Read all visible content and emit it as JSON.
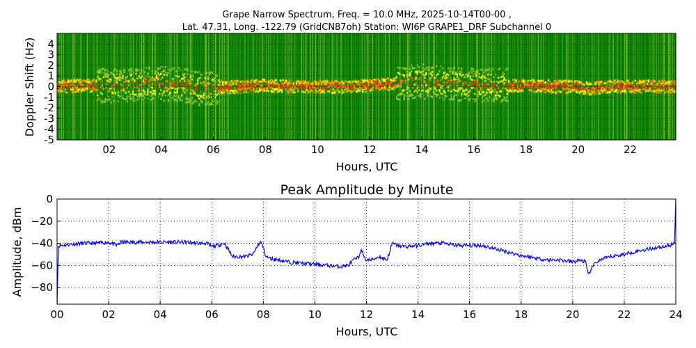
{
  "figure": {
    "title_line1": "Grape Narrow Spectrum, Freq. = 10.0 MHz, 2025-10-14T00-00 ,",
    "title_line2": "Lat.  47.31, Long. -122.79 (GridCN87oh) Station: WI6P GRAPE1_DRF Subchannel 0"
  },
  "chart_data": [
    {
      "type": "heatmap",
      "title": "",
      "xlabel": "Hours, UTC",
      "ylabel": "Doppler Shift (Hz)",
      "xlim": [
        0,
        23.75
      ],
      "ylim": [
        -5,
        5
      ],
      "x_ticks": [
        2,
        4,
        6,
        8,
        10,
        12,
        14,
        16,
        18,
        20,
        22
      ],
      "x_tick_labels": [
        "02",
        "04",
        "06",
        "08",
        "10",
        "12",
        "14",
        "16",
        "18",
        "20",
        "22"
      ],
      "y_ticks": [
        -5,
        -4,
        -3,
        -2,
        -1,
        0,
        1,
        2,
        3,
        4
      ],
      "y_tick_labels": [
        "-5",
        "-4",
        "-3",
        "-2",
        "-1",
        "0",
        "1",
        "2",
        "3",
        "4"
      ],
      "grid": true,
      "colormap": [
        "#007a00",
        "#3a9a00",
        "#9acd32",
        "#ffff00",
        "#ff8c00",
        "#ff2a00"
      ],
      "carrier_offset_hz": [
        [
          0,
          0
        ],
        [
          1,
          0.1
        ],
        [
          2,
          0.1
        ],
        [
          3,
          0.2
        ],
        [
          4,
          0.3
        ],
        [
          5,
          0.1
        ],
        [
          5.5,
          -0.2
        ],
        [
          6,
          -0.1
        ],
        [
          7,
          0
        ],
        [
          8,
          0.1
        ],
        [
          9,
          0
        ],
        [
          10,
          0
        ],
        [
          11,
          0
        ],
        [
          12,
          0.1
        ],
        [
          13,
          0.3
        ],
        [
          14,
          0.5
        ],
        [
          15,
          0.3
        ],
        [
          16,
          0.2
        ],
        [
          17,
          0.1
        ],
        [
          18,
          0.1
        ],
        [
          19,
          0
        ],
        [
          20,
          0
        ],
        [
          20.4,
          -0.2
        ],
        [
          21,
          0
        ],
        [
          22,
          0
        ],
        [
          23,
          0
        ],
        [
          23.75,
          0
        ]
      ]
    },
    {
      "type": "line",
      "title": "Peak Amplitude by Minute",
      "xlabel": "Hours, UTC",
      "ylabel": "Amplitude, dBm",
      "xlim": [
        0,
        24
      ],
      "ylim": [
        -95,
        0
      ],
      "x_ticks": [
        0,
        2,
        4,
        6,
        8,
        10,
        12,
        14,
        16,
        18,
        20,
        22,
        24
      ],
      "x_tick_labels": [
        "00",
        "02",
        "04",
        "06",
        "08",
        "10",
        "12",
        "14",
        "16",
        "18",
        "20",
        "22",
        "24"
      ],
      "y_ticks": [
        0,
        -20,
        -40,
        -60,
        -80
      ],
      "y_tick_labels": [
        "0",
        "−20",
        "−40",
        "−60",
        "−80"
      ],
      "grid": true,
      "line_color": "#0000ff",
      "series": [
        {
          "x": [
            0,
            0.05,
            0.1,
            0.5,
            1,
            1.5,
            2,
            2.3,
            2.5,
            3,
            3.5,
            4,
            4.5,
            5,
            5.5,
            5.8,
            6.0,
            6.2,
            6.5,
            6.8,
            7.0,
            7.3,
            7.6,
            7.8,
            7.9,
            8.0,
            8.1,
            8.3,
            8.6,
            9.0,
            9.5,
            10.0,
            10.5,
            11.0,
            11.3,
            11.5,
            11.7,
            11.8,
            11.9,
            12.0,
            12.2,
            12.5,
            12.8,
            13.0,
            13.2,
            13.5,
            14.0,
            14.5,
            15.0,
            15.5,
            16.0,
            16.5,
            17.0,
            17.5,
            18.0,
            18.5,
            19.0,
            19.5,
            20.0,
            20.3,
            20.5,
            20.6,
            20.7,
            20.9,
            21.2,
            21.5,
            22.0,
            22.5,
            23.0,
            23.5,
            23.9,
            23.95,
            24.0
          ],
          "y": [
            -95,
            -43,
            -42,
            -41,
            -40,
            -40,
            -39,
            -42,
            -39,
            -39,
            -39,
            -39,
            -39,
            -39,
            -40,
            -40,
            -43,
            -42,
            -40,
            -52,
            -52,
            -52,
            -50,
            -41,
            -39,
            -44,
            -52,
            -54,
            -55,
            -57,
            -58,
            -59,
            -60,
            -61,
            -60,
            -55,
            -53,
            -44,
            -53,
            -55,
            -55,
            -52,
            -55,
            -40,
            -42,
            -43,
            -42,
            -40,
            -40,
            -42,
            -42,
            -42,
            -45,
            -48,
            -51,
            -53,
            -55,
            -55,
            -57,
            -55,
            -57,
            -69,
            -64,
            -57,
            -54,
            -52,
            -50,
            -47,
            -45,
            -43,
            -41,
            -40,
            0
          ]
        }
      ]
    }
  ]
}
